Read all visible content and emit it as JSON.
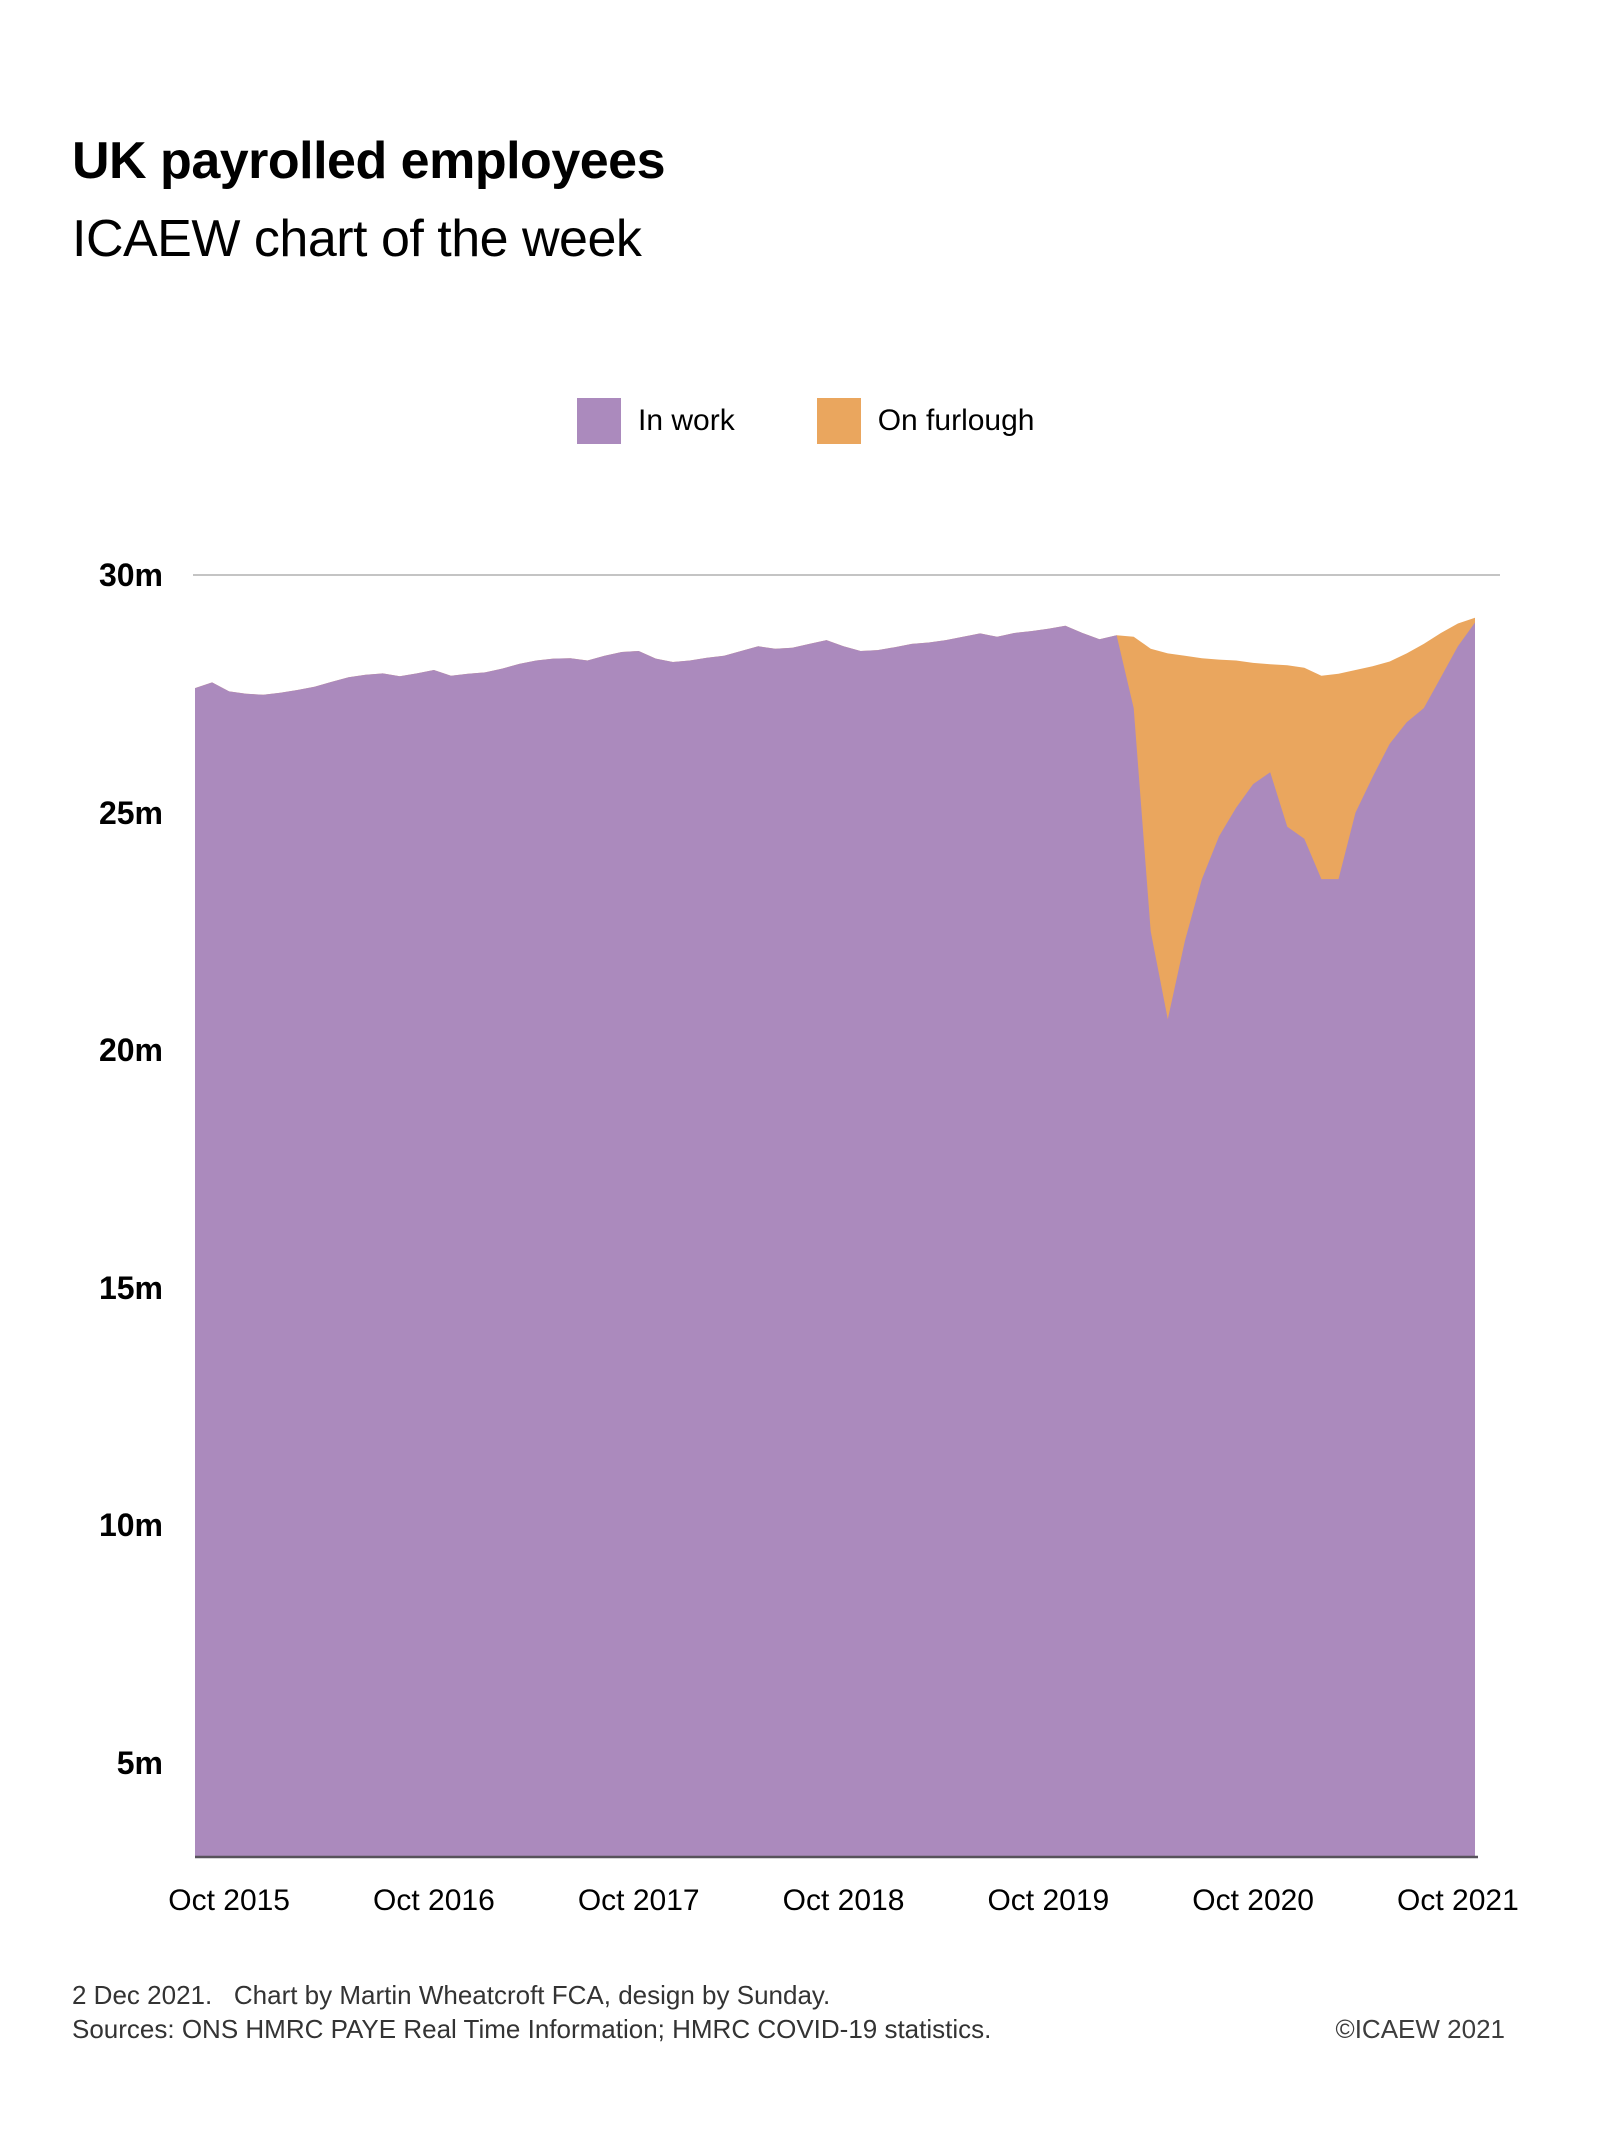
{
  "page": {
    "title": "UK payrolled employees",
    "subtitle": "ICAEW chart of the week",
    "footer_line1": "2 Dec 2021.   Chart by Martin Wheatcroft FCA, design by Sunday.",
    "footer_line2": "Sources: ONS HMRC PAYE Real Time Information; HMRC COVID-19 statistics.",
    "copyright": "©ICAEW 2021"
  },
  "chart_data": {
    "type": "area",
    "stacked": true,
    "unit": "millions of payrolled employees",
    "x_monthly_start": "Aug 2015",
    "x_monthly_end": "Nov 2021",
    "series": [
      {
        "name": "In work",
        "color": "#ab8abd",
        "values": [
          27.62,
          27.74,
          27.55,
          27.5,
          27.48,
          27.52,
          27.58,
          27.65,
          27.75,
          27.85,
          27.9,
          27.93,
          27.87,
          27.93,
          28.0,
          27.88,
          27.92,
          27.95,
          28.03,
          28.13,
          28.2,
          28.24,
          28.25,
          28.2,
          28.3,
          28.38,
          28.4,
          28.24,
          28.17,
          28.2,
          28.26,
          28.3,
          28.4,
          28.5,
          28.45,
          28.47,
          28.55,
          28.63,
          28.5,
          28.4,
          28.42,
          28.48,
          28.55,
          28.58,
          28.63,
          28.7,
          28.77,
          28.7,
          28.78,
          28.82,
          28.87,
          28.93,
          28.78,
          28.65,
          28.73,
          27.2,
          22.5,
          20.65,
          22.3,
          23.6,
          24.5,
          25.1,
          25.6,
          25.85,
          24.7,
          24.45,
          23.6,
          23.6,
          25.0,
          25.75,
          26.45,
          26.9,
          27.2,
          27.85,
          28.5,
          29.0
        ]
      },
      {
        "name": "On furlough",
        "color": "#eaa65e",
        "values": [
          0,
          0,
          0,
          0,
          0,
          0,
          0,
          0,
          0,
          0,
          0,
          0,
          0,
          0,
          0,
          0,
          0,
          0,
          0,
          0,
          0,
          0,
          0,
          0,
          0,
          0,
          0,
          0,
          0,
          0,
          0,
          0,
          0,
          0,
          0,
          0,
          0,
          0,
          0,
          0,
          0,
          0,
          0,
          0,
          0,
          0,
          0,
          0,
          0,
          0,
          0,
          0,
          0,
          0,
          0,
          1.5,
          5.95,
          7.7,
          6.0,
          4.65,
          3.72,
          3.1,
          2.55,
          2.27,
          3.4,
          3.6,
          4.28,
          4.32,
          3.0,
          2.33,
          1.73,
          1.45,
          1.35,
          0.93,
          0.48,
          0.1
        ]
      }
    ],
    "y_axis": {
      "ticks": [
        "30m",
        "25m",
        "20m",
        "15m",
        "10m",
        "5m"
      ],
      "tick_values": [
        30,
        25,
        20,
        15,
        10,
        5
      ],
      "max": 30,
      "min": 3,
      "gridlines_at": [
        30
      ]
    },
    "x_axis": {
      "ticks": [
        "Oct 2015",
        "Oct 2016",
        "Oct 2017",
        "Oct 2018",
        "Oct 2019",
        "Oct 2020",
        "Oct 2021"
      ]
    },
    "legend_position": "top-center",
    "colors": {
      "gridline": "#b0b0b0",
      "baseline": "#57525b",
      "footer_text": "#333333"
    }
  }
}
